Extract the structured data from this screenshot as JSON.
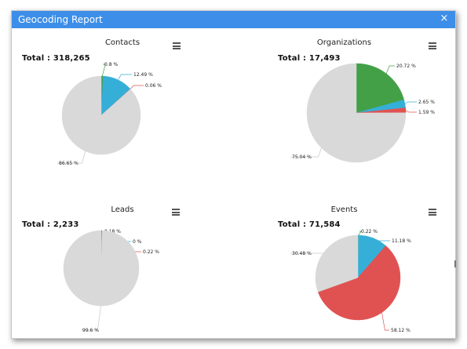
{
  "window": {
    "title": "Geocoding Report",
    "close_glyph": "×"
  },
  "charts": [
    {
      "title": "Contacts",
      "total_label": "Total : 318,265",
      "menu_icon": "hamburger-menu-icon",
      "chart_data": {
        "type": "pie",
        "title": "Contacts",
        "slices": [
          {
            "label": "0.8 %",
            "value": 0.8,
            "color": "#43a047"
          },
          {
            "label": "12.49 %",
            "value": 12.49,
            "color": "#35afd8"
          },
          {
            "label": "0.06 %",
            "value": 0.06,
            "color": "#e05252"
          },
          {
            "label": "86.65 %",
            "value": 86.65,
            "color": "#d9d9d9"
          }
        ]
      }
    },
    {
      "title": "Organizations",
      "total_label": "Total : 17,493",
      "menu_icon": "hamburger-menu-icon",
      "chart_data": {
        "type": "pie",
        "title": "Organizations",
        "slices": [
          {
            "label": "20.72 %",
            "value": 20.72,
            "color": "#43a047"
          },
          {
            "label": "2.65 %",
            "value": 2.65,
            "color": "#35afd8"
          },
          {
            "label": "1.59 %",
            "value": 1.59,
            "color": "#e05252"
          },
          {
            "label": "75.04 %",
            "value": 75.04,
            "color": "#d9d9d9"
          }
        ]
      }
    },
    {
      "title": "Leads",
      "total_label": "Total : 2,233",
      "menu_icon": "hamburger-menu-icon",
      "chart_data": {
        "type": "pie",
        "title": "Leads",
        "slices": [
          {
            "label": "0.18 %",
            "value": 0.18,
            "color": "#43a047"
          },
          {
            "label": "0 %",
            "value": 0,
            "color": "#35afd8"
          },
          {
            "label": "0.22 %",
            "value": 0.22,
            "color": "#e05252"
          },
          {
            "label": "99.6 %",
            "value": 99.6,
            "color": "#d9d9d9"
          }
        ]
      }
    },
    {
      "title": "Events",
      "total_label": "Total : 71,584",
      "menu_icon": "hamburger-menu-icon",
      "chart_data": {
        "type": "pie",
        "title": "Events",
        "slices": [
          {
            "label": "0.22 %",
            "value": 0.22,
            "color": "#43a047"
          },
          {
            "label": "11.18 %",
            "value": 11.18,
            "color": "#35afd8"
          },
          {
            "label": "58.12 %",
            "value": 58.12,
            "color": "#e05252"
          },
          {
            "label": "30.48 %",
            "value": 30.48,
            "color": "#d9d9d9"
          }
        ]
      }
    }
  ]
}
